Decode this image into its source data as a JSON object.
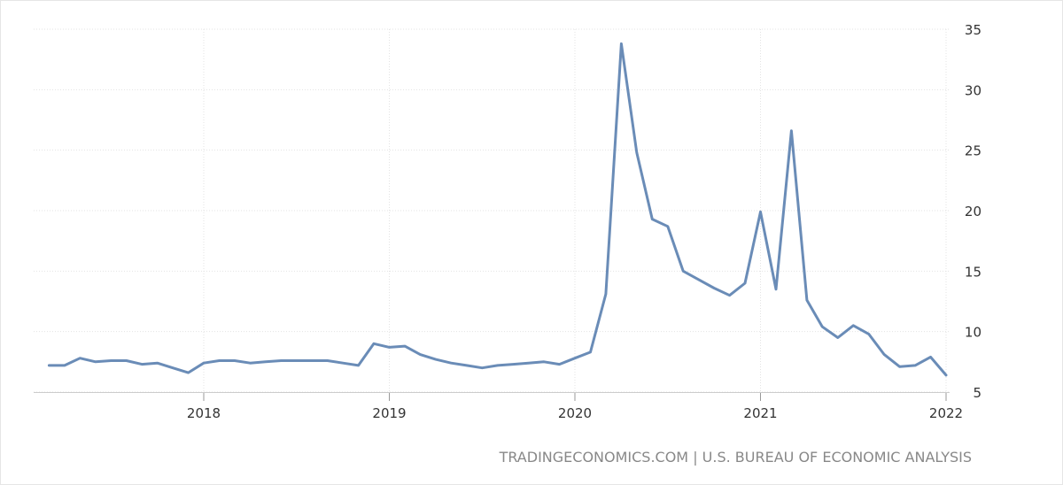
{
  "chart_data": {
    "type": "line",
    "title": "",
    "xlabel": "",
    "ylabel": "",
    "credit": "TRADINGECONOMICS.COM | U.S. BUREAU OF ECONOMIC ANALYSIS",
    "line_color": "#6a8cb7",
    "grid": true,
    "ylim": [
      5,
      35
    ],
    "yticks": [
      5,
      10,
      15,
      20,
      25,
      30,
      35
    ],
    "xlim": [
      2017.1,
      2022.0
    ],
    "xticks": [
      {
        "value": 2018,
        "label": "2018"
      },
      {
        "value": 2019,
        "label": "2019"
      },
      {
        "value": 2020,
        "label": "2020"
      },
      {
        "value": 2021,
        "label": "2021"
      },
      {
        "value": 2022,
        "label": "2022"
      }
    ],
    "series": [
      {
        "x": [
          "2017-03",
          "2017-04",
          "2017-05",
          "2017-06",
          "2017-07",
          "2017-08",
          "2017-09",
          "2017-10",
          "2017-11",
          "2017-12",
          "2018-01",
          "2018-02",
          "2018-03",
          "2018-04",
          "2018-05",
          "2018-06",
          "2018-07",
          "2018-08",
          "2018-09",
          "2018-10",
          "2018-11",
          "2018-12",
          "2019-01",
          "2019-02",
          "2019-03",
          "2019-04",
          "2019-05",
          "2019-06",
          "2019-07",
          "2019-08",
          "2019-09",
          "2019-10",
          "2019-11",
          "2019-12",
          "2020-01",
          "2020-02",
          "2020-03",
          "2020-04",
          "2020-05",
          "2020-06",
          "2020-07",
          "2020-08",
          "2020-09",
          "2020-10",
          "2020-11",
          "2020-12",
          "2021-01",
          "2021-02",
          "2021-03",
          "2021-04",
          "2021-05",
          "2021-06",
          "2021-07",
          "2021-08",
          "2021-09",
          "2021-10",
          "2021-11",
          "2021-12",
          "2022-01"
        ],
        "values": [
          7.2,
          7.2,
          7.8,
          7.5,
          7.6,
          7.6,
          7.3,
          7.4,
          7.0,
          6.6,
          7.4,
          7.6,
          7.6,
          7.4,
          7.5,
          7.6,
          7.6,
          7.6,
          7.6,
          7.4,
          7.2,
          9.0,
          8.7,
          8.8,
          8.1,
          7.7,
          7.4,
          7.2,
          7.0,
          7.2,
          7.3,
          7.4,
          7.5,
          7.3,
          7.8,
          8.3,
          13.1,
          33.8,
          24.8,
          19.3,
          18.7,
          15.0,
          14.3,
          13.6,
          13.0,
          14.0,
          19.9,
          13.5,
          26.6,
          12.6,
          10.4,
          9.5,
          10.5,
          9.8,
          8.1,
          7.1,
          7.2,
          7.9,
          6.4
        ]
      }
    ]
  }
}
